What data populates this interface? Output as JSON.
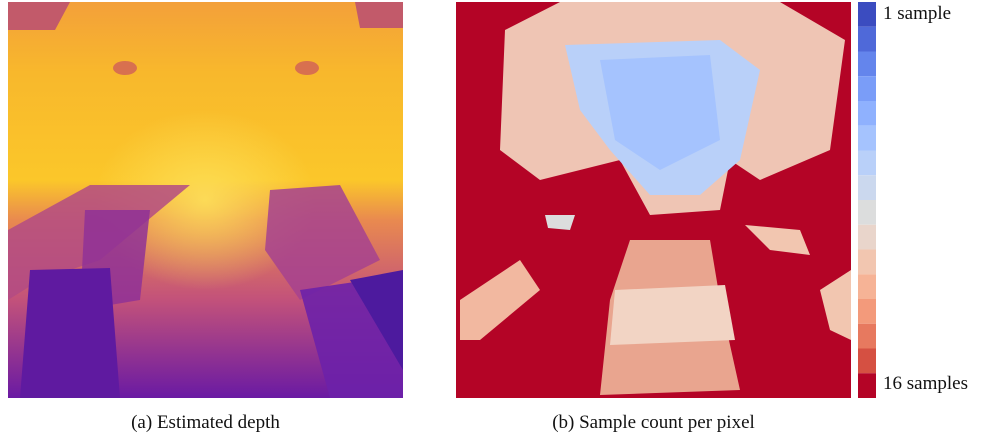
{
  "subfigures": [
    {
      "caption": "(a) Estimated depth"
    },
    {
      "caption": "(b) Sample count per pixel"
    }
  ],
  "colorbar": {
    "top_label": "1 sample",
    "bottom_label": "16 samples"
  }
}
